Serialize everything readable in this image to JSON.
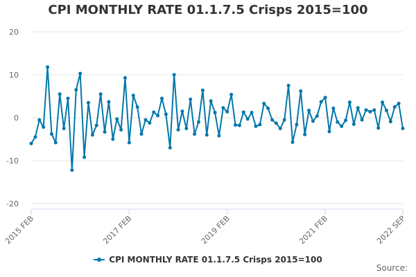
{
  "chart_data": {
    "type": "line",
    "title": "CPI MONTHLY RATE 01.1.7.5 Crisps 2015=100",
    "xlabel": "",
    "ylabel": "",
    "ylim": [
      -20,
      20
    ],
    "yticks": [
      20,
      10,
      0,
      -10,
      -20
    ],
    "xtick_labels": [
      "2015 FEB",
      "2017 FEB",
      "2019 FEB",
      "2021 FEB",
      "2022 SEP"
    ],
    "grid": true,
    "legend_position": "bottom",
    "colors": {
      "series": "#0077aa",
      "grid": "#e6e6e6",
      "axis": "#ccd6eb"
    },
    "x": [
      "2015 FEB",
      "2015 MAR",
      "2015 APR",
      "2015 MAY",
      "2015 JUN",
      "2015 JUL",
      "2015 AUG",
      "2015 SEP",
      "2015 OCT",
      "2015 NOV",
      "2015 DEC",
      "2016 JAN",
      "2016 FEB",
      "2016 MAR",
      "2016 APR",
      "2016 MAY",
      "2016 JUN",
      "2016 JUL",
      "2016 AUG",
      "2016 SEP",
      "2016 OCT",
      "2016 NOV",
      "2016 DEC",
      "2017 JAN",
      "2017 FEB",
      "2017 MAR",
      "2017 APR",
      "2017 MAY",
      "2017 JUN",
      "2017 JUL",
      "2017 AUG",
      "2017 SEP",
      "2017 OCT",
      "2017 NOV",
      "2017 DEC",
      "2018 JAN",
      "2018 FEB",
      "2018 MAR",
      "2018 APR",
      "2018 MAY",
      "2018 JUN",
      "2018 JUL",
      "2018 AUG",
      "2018 SEP",
      "2018 OCT",
      "2018 NOV",
      "2018 DEC",
      "2019 JAN",
      "2019 FEB",
      "2019 MAR",
      "2019 APR",
      "2019 MAY",
      "2019 JUN",
      "2019 JUL",
      "2019 AUG",
      "2019 SEP",
      "2019 OCT",
      "2019 NOV",
      "2019 DEC",
      "2020 JAN",
      "2020 FEB",
      "2020 MAR",
      "2020 APR",
      "2020 MAY",
      "2020 JUN",
      "2020 JUL",
      "2020 AUG",
      "2020 SEP",
      "2020 OCT",
      "2020 NOV",
      "2020 DEC",
      "2021 JAN",
      "2021 FEB",
      "2021 MAR",
      "2021 APR",
      "2021 MAY",
      "2021 JUN",
      "2021 JUL",
      "2021 AUG",
      "2021 SEP",
      "2021 OCT",
      "2021 NOV",
      "2021 DEC",
      "2022 JAN",
      "2022 FEB",
      "2022 MAR",
      "2022 APR",
      "2022 MAY",
      "2022 JUN",
      "2022 JUL",
      "2022 AUG",
      "2022 SEP"
    ],
    "series": [
      {
        "name": "CPI MONTHLY RATE 01.1.7.5 Crisps 2015=100",
        "values": [
          -6.0,
          -4.5,
          -0.5,
          -2.2,
          11.8,
          -3.8,
          -5.8,
          5.5,
          -2.5,
          4.5,
          -12.2,
          6.5,
          10.3,
          -9.2,
          3.5,
          -4.0,
          -1.8,
          5.5,
          -3.3,
          3.7,
          -5.0,
          -0.3,
          -2.8,
          9.3,
          -5.8,
          5.2,
          2.5,
          -3.8,
          -0.5,
          -1.2,
          1.3,
          0.5,
          4.5,
          0.8,
          -7.0,
          10.0,
          -2.8,
          1.5,
          -2.5,
          4.3,
          -3.8,
          -1.0,
          6.4,
          -4.0,
          3.9,
          1.2,
          -4.2,
          2.3,
          1.4,
          5.4,
          -1.7,
          -1.8,
          1.3,
          -0.3,
          1.2,
          -2.0,
          -1.6,
          3.3,
          2.2,
          -0.5,
          -1.3,
          -2.5,
          -0.5,
          7.5,
          -5.7,
          -1.6,
          6.2,
          -3.9,
          1.7,
          -0.8,
          0.4,
          3.7,
          4.7,
          -3.2,
          2.2,
          -1.0,
          -2.0,
          -0.6,
          3.6,
          -1.5,
          2.3,
          -0.5,
          1.8,
          1.4,
          1.8,
          -2.4,
          3.6,
          1.7,
          -0.9,
          2.5,
          3.3,
          -2.5
        ]
      }
    ]
  },
  "legend": {
    "label": "CPI MONTHLY RATE 01.1.7.5 Crisps 2015=100"
  },
  "source": {
    "label": "Source:"
  }
}
